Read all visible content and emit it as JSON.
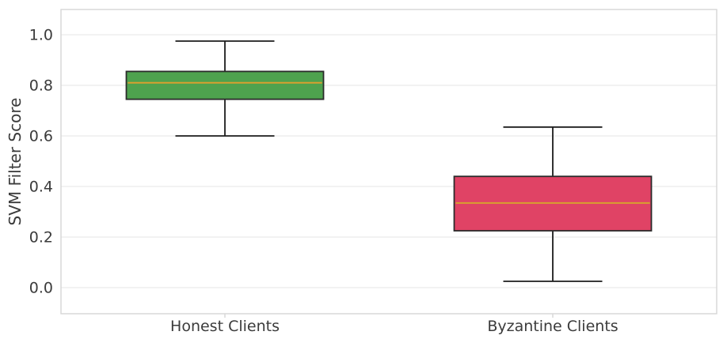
{
  "figure": {
    "background": "#ffffff"
  },
  "chart_data": {
    "type": "box",
    "title": "",
    "xlabel": "",
    "ylabel": "SVM Filter Score",
    "categories": [
      "Honest Clients",
      "Byzantine Clients"
    ],
    "series": [
      {
        "name": "Honest Clients",
        "whisker_low": 0.6,
        "q1": 0.745,
        "median": 0.81,
        "q3": 0.855,
        "whisker_high": 0.975,
        "fill_color": "#4ea24e"
      },
      {
        "name": "Byzantine Clients",
        "whisker_low": 0.025,
        "q1": 0.225,
        "median": 0.335,
        "q3": 0.44,
        "whisker_high": 0.635,
        "fill_color": "#e04365"
      }
    ],
    "ytick_values": [
      0.0,
      0.2,
      0.4,
      0.6,
      0.8,
      1.0
    ],
    "ytick_labels": [
      "0.0",
      "0.2",
      "0.4",
      "0.6",
      "0.8",
      "1.0"
    ],
    "ylim": [
      -0.103,
      1.1
    ],
    "grid": true,
    "legend_position": "none",
    "colors": {
      "median_line": "#d8a02f",
      "box_edge": "#2b2b2b",
      "whisker": "#1c1c1c",
      "grid_line": "#e9e9e9",
      "axis_spine": "#d6d6d6",
      "tick_text": "#3b3b3b"
    }
  }
}
